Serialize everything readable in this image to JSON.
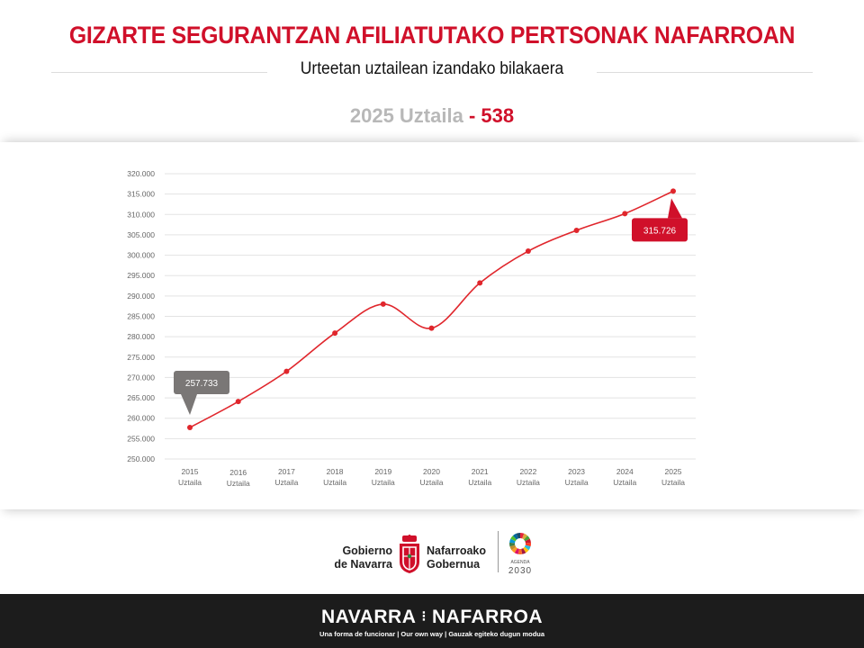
{
  "header": {
    "title": "GIZARTE SEGURANTZAN AFILIATUTAKO PERTSONAK NAFARROAN",
    "subtitle": "Urteetan uztailean izandako bilakaera"
  },
  "headline": {
    "period": "2025 Uztaila",
    "separator": "-",
    "value": "538"
  },
  "chart_data": {
    "type": "line",
    "x": [
      "2015",
      "2016",
      "2017",
      "2018",
      "2019",
      "2020",
      "2021",
      "2022",
      "2023",
      "2024",
      "2025"
    ],
    "x_sublabel": "Uztaila",
    "values": [
      257733,
      264100,
      271500,
      280900,
      288000,
      282100,
      293200,
      301000,
      306100,
      310200,
      315726
    ],
    "ylim": [
      250000,
      320000
    ],
    "yticks": [
      "250.000",
      "255.000",
      "260.000",
      "265.000",
      "270.000",
      "275.000",
      "280.000",
      "285.000",
      "290.000",
      "295.000",
      "300.000",
      "305.000",
      "310.000",
      "315.000",
      "320.000"
    ],
    "grid": true,
    "line_color": "#e0262c",
    "callouts": [
      {
        "index": 0,
        "label": "257.733",
        "color": "#7a7776"
      },
      {
        "index": 10,
        "label": "315.726",
        "color": "#d0102a"
      }
    ]
  },
  "logos": {
    "gov_es_line1": "Gobierno",
    "gov_es_line2": "de Navarra",
    "gov_eu_line1": "Nafarroako",
    "gov_eu_line2": "Gobernua",
    "agenda_word": "AGENDA",
    "agenda_year": "2030"
  },
  "footer": {
    "brand_left": "NAVARRA",
    "brand_separator": "⁝",
    "brand_right": "NAFARROA",
    "tagline": "Una forma de funcionar | Our own way | Gauzak egiteko dugun modua"
  },
  "colors": {
    "accent": "#d0102a",
    "footer_bg": "#1c1c1c",
    "muted_text": "#b8b8b8"
  }
}
